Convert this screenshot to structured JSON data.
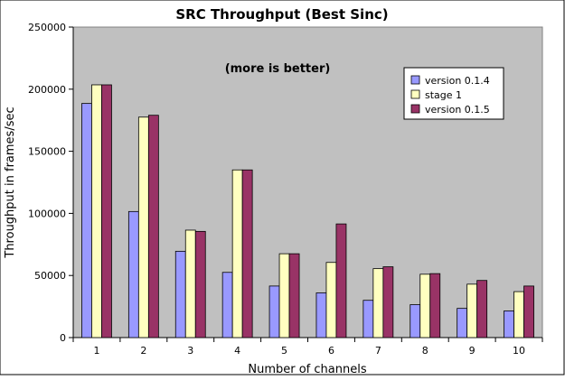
{
  "chart_data": {
    "type": "bar",
    "title": "SRC Throughput (Best Sinc)",
    "annotation": "(more is better)",
    "xlabel": "Number of channels",
    "ylabel": "Throughput in frames/sec",
    "categories": [
      "1",
      "2",
      "3",
      "4",
      "5",
      "6",
      "7",
      "8",
      "9",
      "10"
    ],
    "ylim": [
      0,
      250000
    ],
    "yticks": [
      "0",
      "50000",
      "100000",
      "150000",
      "200000",
      "250000"
    ],
    "grid": false,
    "legend_position": "top-right",
    "series": [
      {
        "name": "version 0.1.4",
        "color": "#9999ff",
        "values": [
          188500,
          101500,
          69500,
          52500,
          41500,
          36000,
          30000,
          26500,
          23500,
          21500
        ]
      },
      {
        "name": "stage 1",
        "color": "#ffffc0",
        "values": [
          203500,
          177500,
          86500,
          135000,
          67500,
          60500,
          55500,
          51000,
          43000,
          37000
        ]
      },
      {
        "name": "version 0.1.5",
        "color": "#993366",
        "values": [
          203500,
          179000,
          85500,
          135000,
          67500,
          91500,
          57000,
          51500,
          46000,
          41500
        ]
      }
    ]
  }
}
